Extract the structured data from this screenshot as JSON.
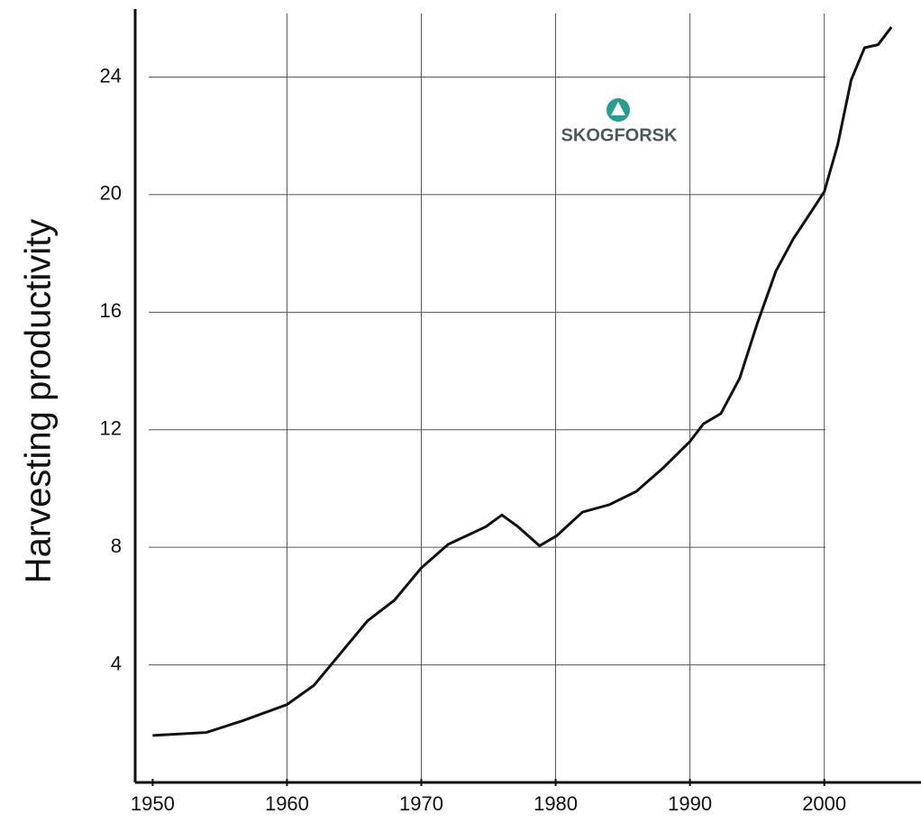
{
  "chart_data": {
    "type": "line",
    "y_label": "Harvesting productivity",
    "logo": "SKOGFORSK",
    "x": [
      1950,
      1954,
      1956.7,
      1960,
      1962,
      1964,
      1966,
      1968,
      1970,
      1972,
      1973.4,
      1974.8,
      1976,
      1977.2,
      1978.8,
      1980.1,
      1982,
      1984,
      1986,
      1988,
      1990,
      1991,
      1992.3,
      1993.7,
      1995,
      1996.4,
      1997.7,
      1999,
      2000,
      2001,
      2002,
      2003,
      2004,
      2005
    ],
    "series": [
      {
        "color": "#111111",
        "values": [
          1.6,
          1.7,
          2.1,
          2.65,
          3.3,
          4.4,
          5.5,
          6.2,
          7.3,
          8.1,
          8.4,
          8.7,
          9.1,
          8.7,
          8.05,
          8.4,
          9.2,
          9.45,
          9.9,
          10.7,
          11.6,
          12.2,
          12.55,
          13.75,
          15.6,
          17.4,
          18.5,
          19.4,
          20.1,
          21.7,
          23.9,
          25.0,
          25.1,
          25.7
        ]
      }
    ],
    "xlim": [
      1948.7,
      2007.2
    ],
    "ylim": [
      0,
      26.5
    ],
    "xticks": [
      1950,
      1960,
      1970,
      1980,
      1990,
      2000
    ],
    "yticks": [
      4,
      8,
      12,
      16,
      20,
      24
    ],
    "grid": true
  }
}
